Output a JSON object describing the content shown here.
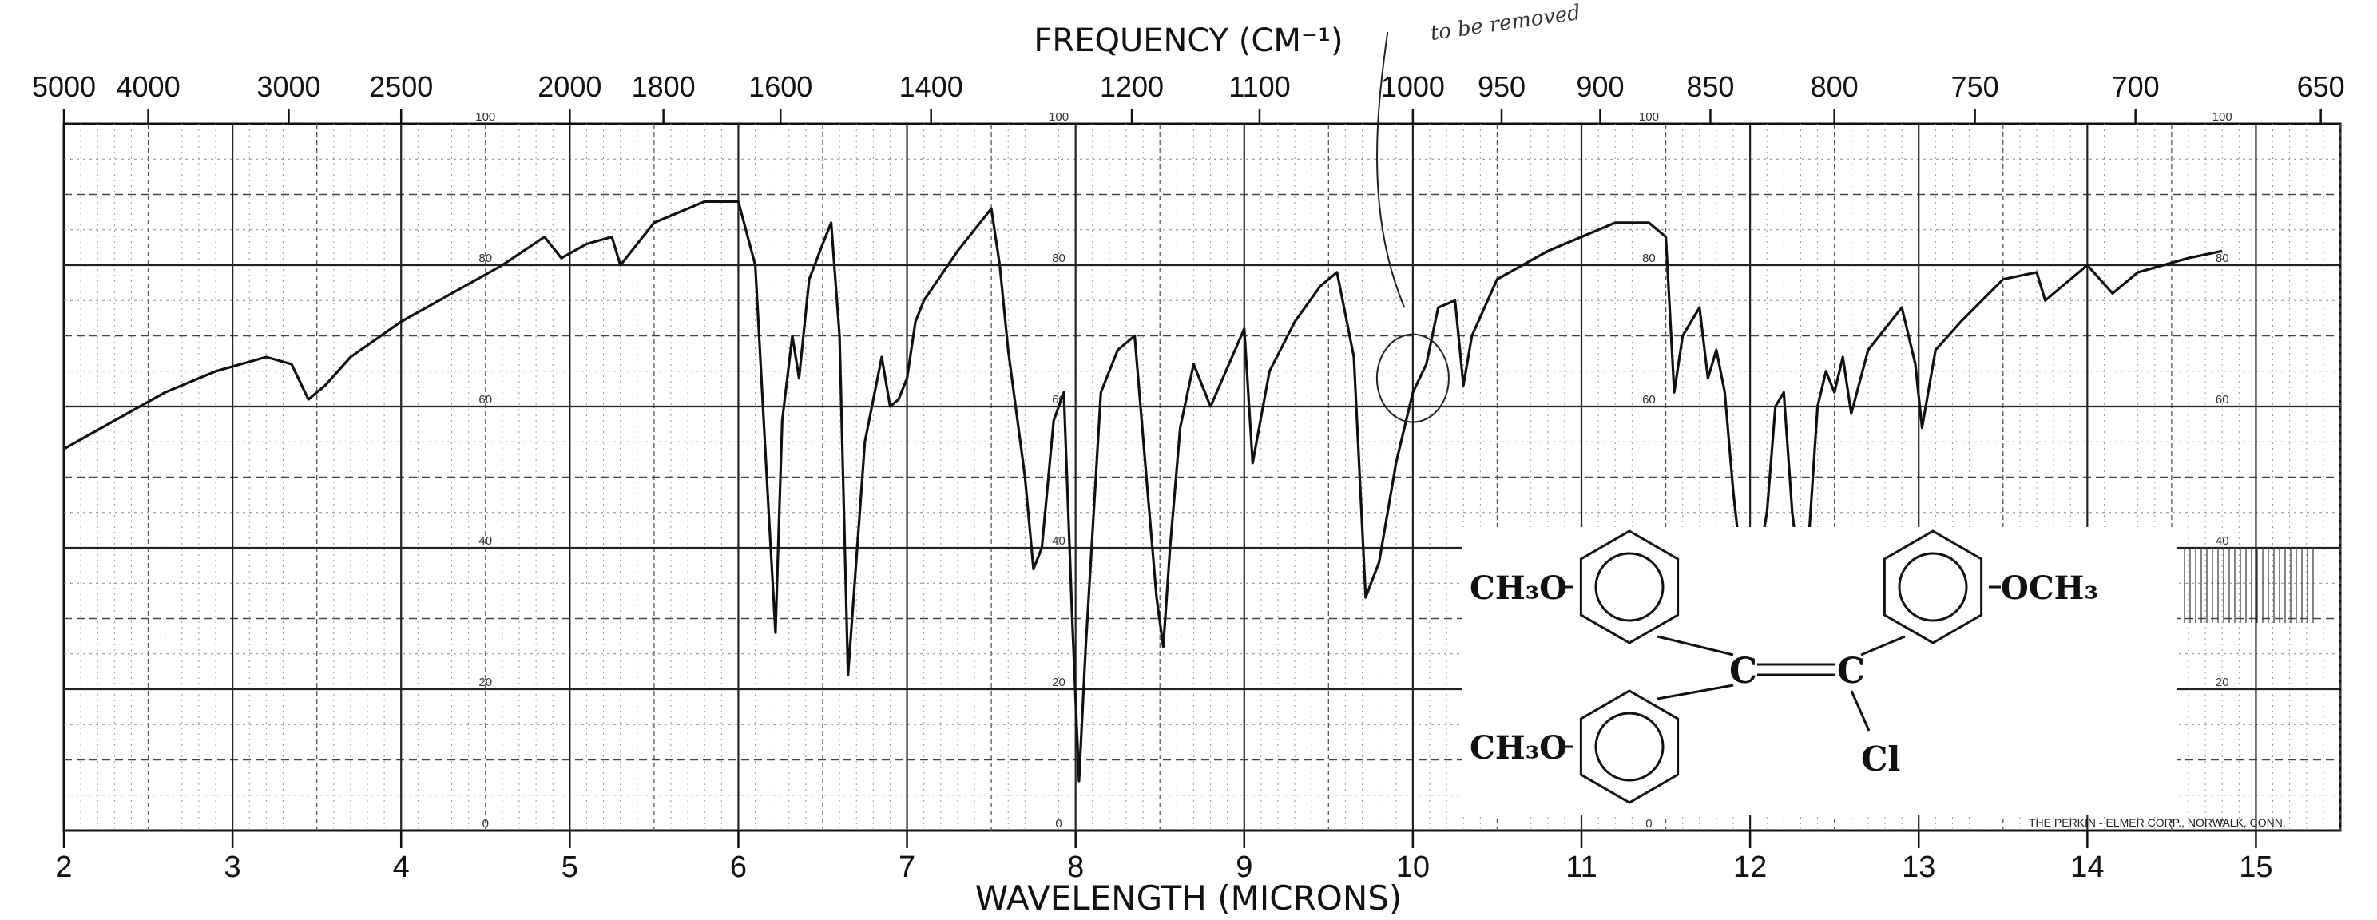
{
  "chart_data": {
    "type": "line",
    "title": "",
    "top_axis_label": "FREQUENCY (CM⁻¹)",
    "xlabel": "WAVELENGTH (MICRONS)",
    "ylabel": "",
    "xlim": [
      2,
      15.5
    ],
    "ylim": [
      0,
      100
    ],
    "grid": true,
    "top_ticks": [
      5000,
      4000,
      3000,
      2500,
      2000,
      1800,
      1600,
      1400,
      1200,
      1100,
      1000,
      950,
      900,
      850,
      800,
      750,
      700,
      650
    ],
    "bottom_ticks": [
      2,
      3,
      4,
      5,
      6,
      7,
      8,
      9,
      10,
      11,
      12,
      13,
      14,
      15
    ],
    "y_ticks": [
      0,
      20,
      40,
      60,
      80,
      100
    ],
    "y_label_columns_x": [
      4.5,
      7.9,
      11.4,
      14.8
    ],
    "series": [
      {
        "name": "",
        "color": "#111111",
        "x": [
          2.0,
          2.3,
          2.6,
          2.9,
          3.2,
          3.35,
          3.45,
          3.55,
          3.7,
          4.0,
          4.3,
          4.6,
          4.85,
          4.95,
          5.1,
          5.25,
          5.3,
          5.5,
          5.8,
          6.0,
          6.1,
          6.18,
          6.22,
          6.26,
          6.32,
          6.36,
          6.42,
          6.5,
          6.55,
          6.6,
          6.65,
          6.75,
          6.85,
          6.9,
          6.95,
          7.0,
          7.05,
          7.1,
          7.3,
          7.5,
          7.55,
          7.6,
          7.7,
          7.75,
          7.8,
          7.87,
          7.93,
          7.98,
          8.02,
          8.06,
          8.15,
          8.25,
          8.35,
          8.42,
          8.48,
          8.52,
          8.56,
          8.62,
          8.7,
          8.8,
          9.0,
          9.05,
          9.15,
          9.3,
          9.45,
          9.55,
          9.65,
          9.72,
          9.8,
          9.9,
          10.0,
          10.08,
          10.15,
          10.25,
          10.3,
          10.35,
          10.5,
          10.8,
          11.0,
          11.2,
          11.4,
          11.5,
          11.55,
          11.6,
          11.7,
          11.75,
          11.8,
          11.85,
          11.9,
          11.95,
          12.0,
          12.05,
          12.1,
          12.15,
          12.2,
          12.25,
          12.3,
          12.35,
          12.4,
          12.45,
          12.5,
          12.55,
          12.6,
          12.7,
          12.9,
          12.98,
          13.02,
          13.1,
          13.25,
          13.5,
          13.7,
          13.75,
          13.9,
          14.0,
          14.15,
          14.3,
          14.6,
          14.8
        ],
        "y": [
          54,
          58,
          62,
          65,
          67,
          66,
          61,
          63,
          67,
          72,
          76,
          80,
          84,
          81,
          83,
          84,
          80,
          86,
          89,
          89,
          80,
          45,
          28,
          58,
          70,
          64,
          78,
          83,
          86,
          70,
          22,
          55,
          67,
          60,
          61,
          64,
          72,
          75,
          82,
          88,
          80,
          68,
          50,
          37,
          40,
          58,
          62,
          30,
          7,
          26,
          62,
          68,
          70,
          50,
          33,
          26,
          40,
          57,
          66,
          60,
          71,
          52,
          65,
          72,
          77,
          79,
          67,
          33,
          38,
          52,
          62,
          66,
          74,
          75,
          63,
          70,
          78,
          82,
          84,
          86,
          86,
          84,
          62,
          70,
          74,
          64,
          68,
          62,
          48,
          37,
          40,
          38,
          45,
          60,
          62,
          45,
          35,
          42,
          60,
          65,
          62,
          67,
          59,
          68,
          74,
          66,
          57,
          68,
          72,
          78,
          79,
          75,
          78,
          80,
          76,
          79,
          81,
          82
        ]
      }
    ]
  },
  "labels": {
    "top_title": "FREQUENCY (CM⁻¹)",
    "bottom_title": "WAVELENGTH (MICRONS)",
    "credit": "THE PERKIN - ELMER CORP., NORWALK, CONN.",
    "handwritten_note": "to be removed"
  },
  "structure": {
    "group_top_left": "CH₃O",
    "group_top_right": "OCH₃",
    "group_bottom_left": "CH₃O",
    "center_left_carbon": "C",
    "center_right_carbon": "C",
    "chlorine": "Cl"
  }
}
